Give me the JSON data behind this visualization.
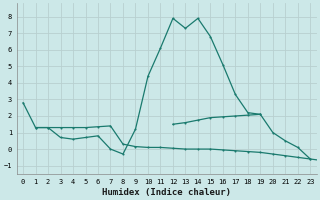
{
  "xlabel": "Humidex (Indice chaleur)",
  "bg_color": "#cce8e8",
  "grid_color": "#b8d0d0",
  "line_color": "#1a7a6e",
  "xlim": [
    -0.5,
    23.5
  ],
  "ylim": [
    -1.5,
    8.8
  ],
  "xticks": [
    0,
    1,
    2,
    3,
    4,
    5,
    6,
    7,
    8,
    9,
    10,
    11,
    12,
    13,
    14,
    15,
    16,
    17,
    18,
    19,
    20,
    21,
    22,
    23
  ],
  "yticks": [
    -1,
    0,
    1,
    2,
    3,
    4,
    5,
    6,
    7,
    8
  ],
  "series1": [
    2.8,
    1.3,
    1.3,
    0.7,
    0.6,
    0.7,
    0.8,
    0.0,
    -0.3,
    1.2,
    4.4,
    6.1,
    7.9,
    7.3,
    7.9,
    6.8,
    5.1,
    3.3,
    2.2,
    2.1,
    1.0,
    0.5,
    0.1,
    -0.6
  ],
  "series2": [
    1.3,
    1.3,
    1.3,
    1.3,
    1.3,
    1.35,
    1.4,
    0.3,
    0.15,
    0.1,
    0.1,
    0.05,
    0.0,
    0.0,
    0.0,
    -0.05,
    -0.1,
    -0.15,
    -0.2,
    -0.3,
    -0.4,
    -0.5,
    -0.6,
    -0.7
  ],
  "series3": [
    null,
    null,
    null,
    null,
    null,
    null,
    null,
    null,
    null,
    null,
    null,
    null,
    1.5,
    1.6,
    1.75,
    1.9,
    1.95,
    2.0,
    2.05,
    2.1,
    null,
    null,
    null,
    null
  ]
}
